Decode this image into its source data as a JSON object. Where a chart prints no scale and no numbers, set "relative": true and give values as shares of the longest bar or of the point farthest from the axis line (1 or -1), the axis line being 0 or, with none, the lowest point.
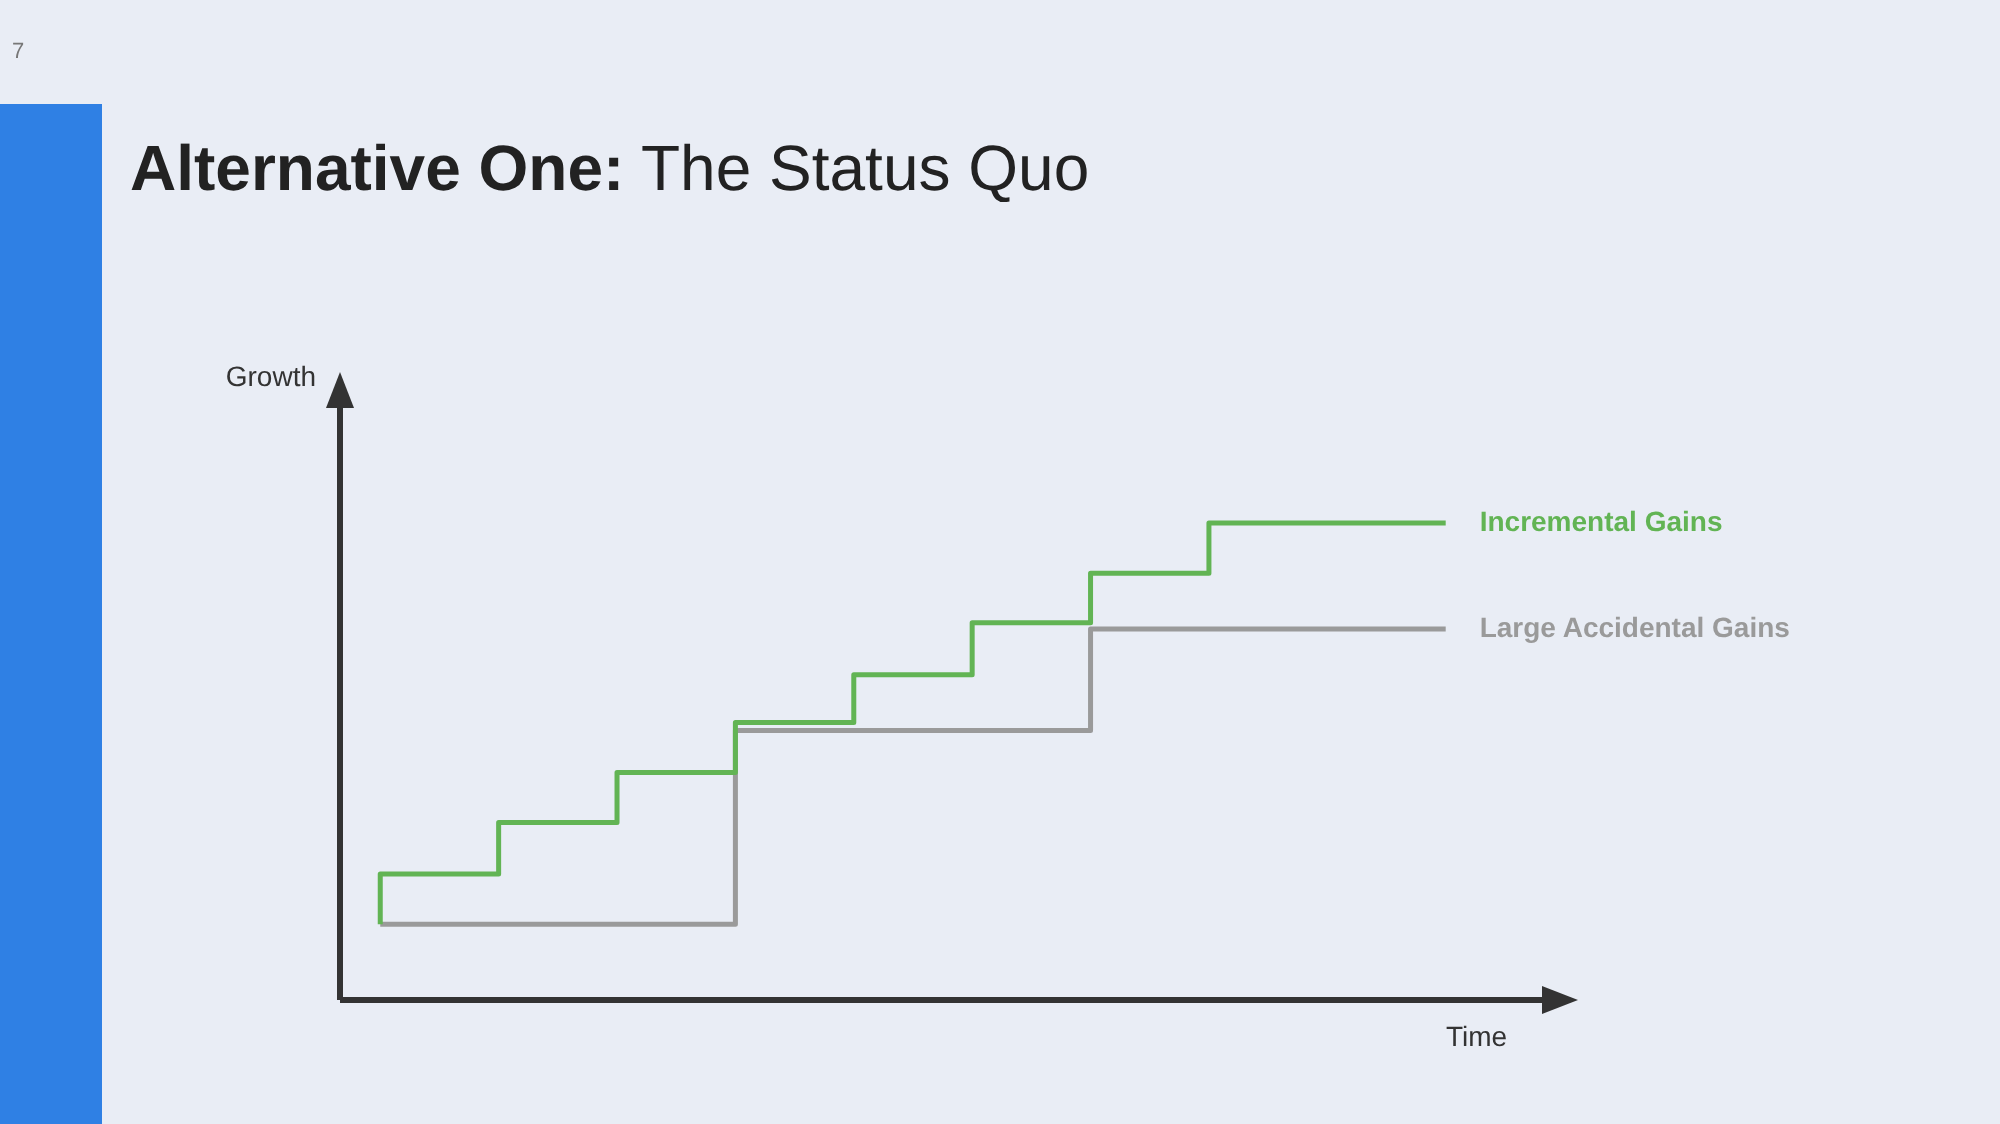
{
  "chart_data": {
    "type": "step",
    "title": "Alternative One: The Status Quo",
    "xlabel": "Time",
    "ylabel": "Growth",
    "relative": true,
    "legend": false,
    "marker": "none",
    "categories": [
      null,
      null,
      null,
      null,
      null,
      null,
      null,
      null,
      null,
      null
    ],
    "series": [
      {
        "name": "Incremental Gains",
        "color": "#62b454",
        "values": [
          0.159,
          0.264,
          0.372,
          0.477,
          0.582,
          0.682,
          0.791,
          0.895,
          1.0,
          1.0
        ]
      },
      {
        "name": "Large Accidental Gains",
        "color": "#9a9a9a",
        "values": [
          0.159,
          0.159,
          0.159,
          0.159,
          0.565,
          0.565,
          0.565,
          0.778,
          0.778,
          0.778
        ]
      }
    ],
    "annotations": [
      "7"
    ]
  }
}
